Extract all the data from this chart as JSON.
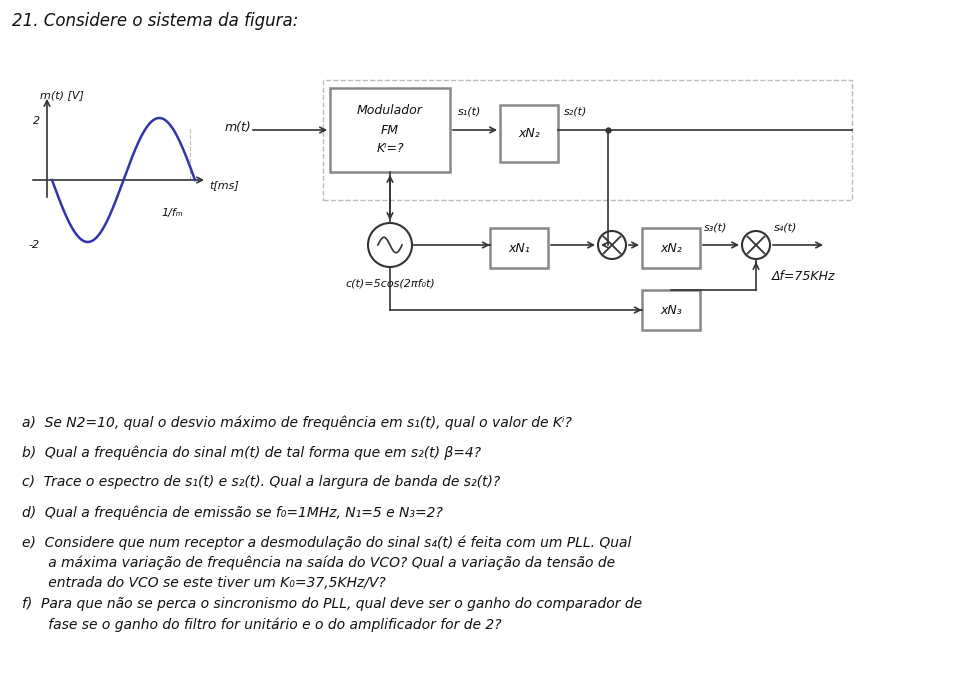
{
  "title": "21. Considere o sistema da figura:",
  "bg_color": "#ffffff",
  "figure_width": 9.6,
  "figure_height": 6.96,
  "questions": [
    "a)  Se N2=10, qual o desvio máximo de frequência em s₁(t), qual o valor de Kⁱ?",
    "b)  Qual a frequência do sinal m(t) de tal forma que em s₂(t) β=4?",
    "c)  Trace o espectro de s₁(t) e s₂(t). Qual a largura de banda de s₂(t)?",
    "d)  Qual a frequência de emissão se f₀=1MHz, N₁=5 e N₃=2?",
    "e)  Considere que num receptor a desmodulação do sinal s₄(t) é feita com um PLL. Qual\n      a máxima variação de frequência na saída do VCO? Qual a variação da tensão de\n      entrada do VCO se este tiver um K₀=37,5KHz/V?",
    "f)  Para que não se perca o sincronismo do PLL, qual deve ser o ganho do comparador de\n      fase se o ganho do filtro for unitário e o do amplificador for de 2?"
  ],
  "signal_color": "#3333aa",
  "box_color": "#888888",
  "line_color": "#333333",
  "dashed_color": "#bbbbbb",
  "text_color": "#111111",
  "sine_label_y": "m(t) [V]",
  "time_label": "t[ms]",
  "period_label": "1/fₘ",
  "block_fm_label": "Modulador\nFM\nKⁱ=?",
  "block_xn2_top_label": "xN₂",
  "block_xn1_label": "xN₁",
  "block_xn2_bot_label": "xN₂",
  "block_xn3_label": "xN₃",
  "carrier_label": "c(t)=5cos(2πf₀t)",
  "delta_f_label": "Δf=75KHz",
  "m_label": "m(t)",
  "s1_label": "s₁(t)",
  "s2_label": "s₂(t)",
  "s3_label": "s₃(t)",
  "s4_label": "s₄(t)"
}
